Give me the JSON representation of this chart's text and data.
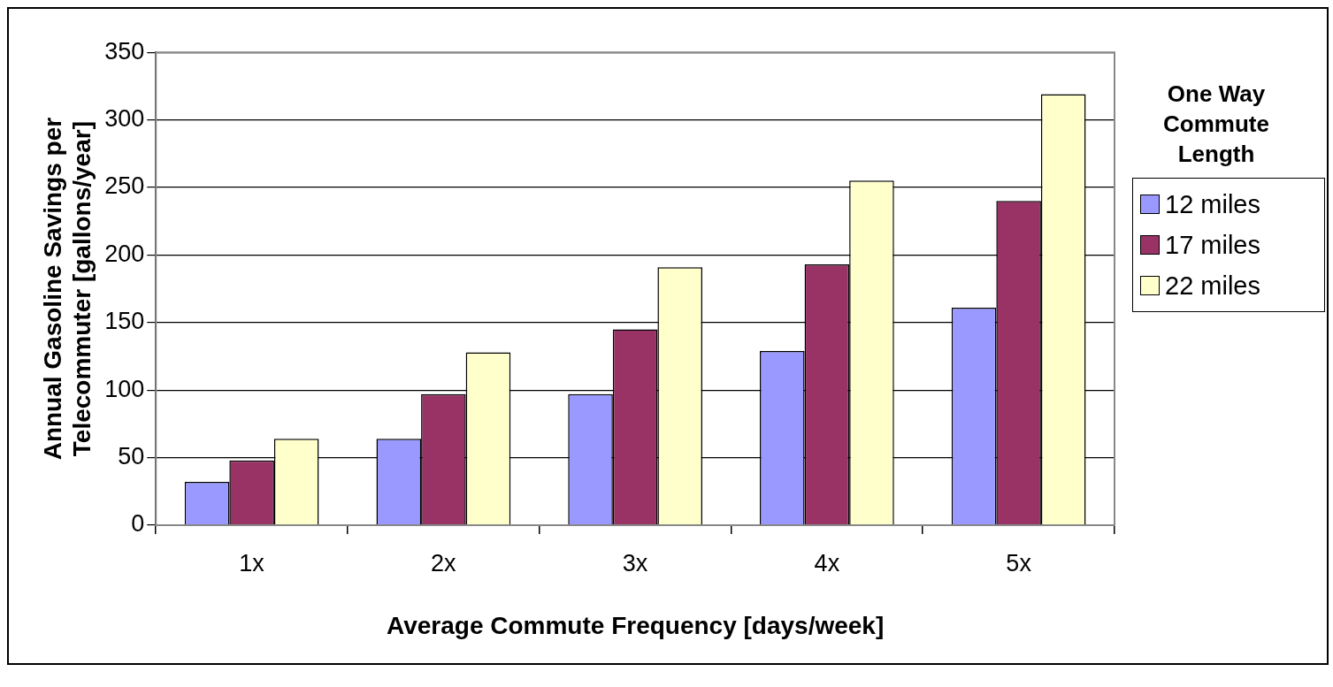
{
  "chart_data": {
    "type": "bar",
    "xlabel": "Average Commute Frequency [days/week]",
    "ylabel": "Annual Gasoline Savings per Telecommuter [gallons/year]",
    "legend_title": "One Way Commute Length",
    "categories": [
      "1x",
      "2x",
      "3x",
      "4x",
      "5x"
    ],
    "series": [
      {
        "name": "12 miles",
        "color": "#9999ff",
        "values": [
          32,
          64,
          97,
          129,
          161
        ]
      },
      {
        "name": "17 miles",
        "color": "#993366",
        "values": [
          48,
          97,
          145,
          193,
          240
        ]
      },
      {
        "name": "22 miles",
        "color": "#ffffcc",
        "values": [
          64,
          128,
          191,
          255,
          319
        ]
      }
    ],
    "ylim": [
      0,
      350
    ],
    "yticks": [
      0,
      50,
      100,
      150,
      200,
      250,
      300,
      350
    ],
    "grid": "y",
    "legend": "right"
  }
}
